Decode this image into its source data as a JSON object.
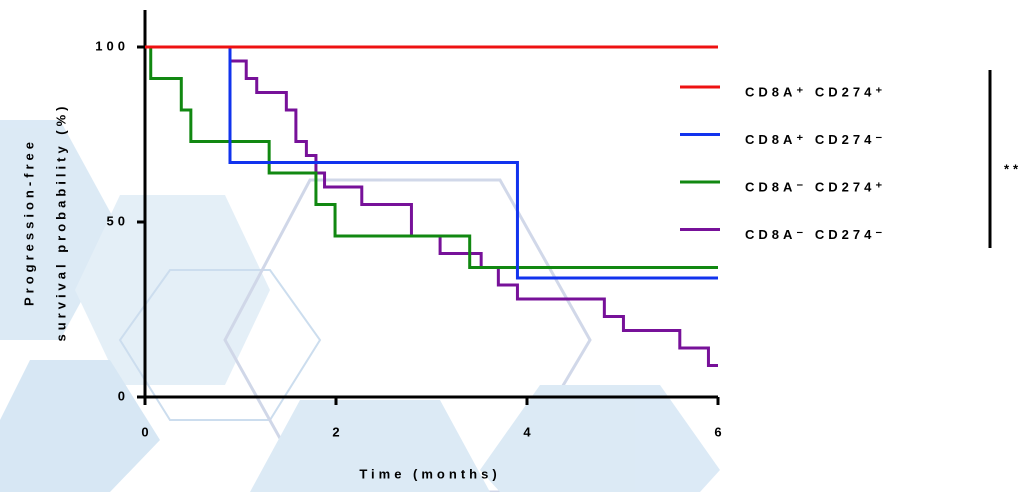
{
  "chart_data": {
    "type": "step-line",
    "ylabel": [
      "Progression-free",
      "survival probability (%)"
    ],
    "xlabel": "Time (months)",
    "xlim": [
      0,
      6
    ],
    "xticks": [
      0,
      2,
      4,
      6
    ],
    "ylim": [
      0,
      110
    ],
    "yticks": [
      0,
      50,
      100
    ],
    "annotation": "**",
    "series": [
      {
        "name": "CD8A⁺ CD274⁺",
        "color": "#ee1111",
        "x": [
          0,
          6
        ],
        "values": [
          100,
          100
        ]
      },
      {
        "name": "CD8A⁺ CD274⁻",
        "color": "#1133ee",
        "x": [
          0,
          0.89,
          3.9,
          6
        ],
        "values": [
          100,
          67,
          34,
          34
        ]
      },
      {
        "name": "CD8A⁻ CD274⁺",
        "color": "#118811",
        "x": [
          0,
          0.06,
          0.38,
          0.48,
          1.3,
          1.79,
          1.99,
          3.4,
          6
        ],
        "values": [
          100,
          91,
          82,
          73,
          64,
          55,
          46,
          37,
          37
        ]
      },
      {
        "name": "CD8A⁻ CD274⁻",
        "color": "#771199",
        "x": [
          0.89,
          1.06,
          1.17,
          1.48,
          1.58,
          1.69,
          1.79,
          1.88,
          2.27,
          2.79,
          3.09,
          3.52,
          3.7,
          3.9,
          4.81,
          5.01,
          5.6,
          5.9,
          6
        ],
        "values": [
          96,
          91,
          87,
          82,
          73,
          69,
          64,
          60,
          55,
          46,
          41,
          37,
          32,
          28,
          23,
          19,
          14,
          9,
          9
        ]
      }
    ]
  }
}
